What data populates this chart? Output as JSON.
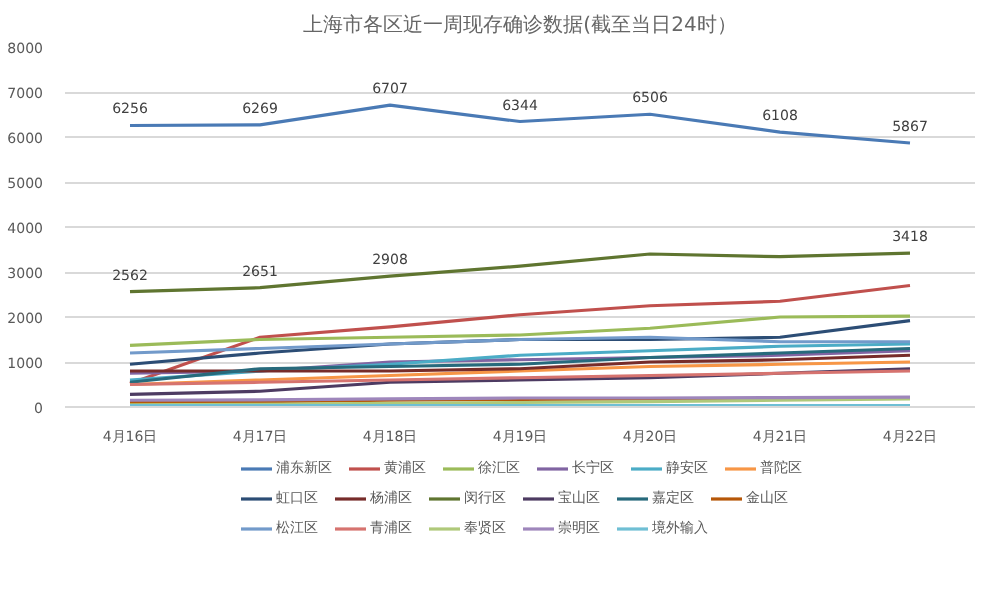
{
  "chart_data": {
    "type": "line",
    "title": "上海市各区近一周现存确诊数据(截至当日24时）",
    "categories": [
      "4月16日",
      "4月17日",
      "4月18日",
      "4月19日",
      "4月20日",
      "4月21日",
      "4月22日"
    ],
    "ylim": [
      0,
      8000
    ],
    "yticks": [
      0,
      1000,
      2000,
      3000,
      4000,
      5000,
      6000,
      7000,
      8000
    ],
    "grid": "y",
    "legend": "bottom",
    "marker": "none",
    "line_style": "solid",
    "series": [
      {
        "name": "浦东新区",
        "color": "#4a7ab5",
        "values": [
          6256,
          6269,
          6707,
          6344,
          6506,
          6108,
          5867
        ],
        "value_labels": [
          "6256",
          "6269",
          "6707",
          "6344",
          "6506",
          "6108",
          "5867"
        ]
      },
      {
        "name": "黄浦区",
        "color": "#c0504d",
        "values": [
          520,
          1550,
          1780,
          2050,
          2250,
          2350,
          2700
        ]
      },
      {
        "name": "徐汇区",
        "color": "#9bbb59",
        "values": [
          1370,
          1500,
          1550,
          1600,
          1750,
          2000,
          2020
        ]
      },
      {
        "name": "长宁区",
        "color": "#8064a2",
        "values": [
          750,
          800,
          1000,
          1050,
          1100,
          1150,
          1250
        ]
      },
      {
        "name": "静安区",
        "color": "#4bacc6",
        "values": [
          600,
          800,
          950,
          1150,
          1250,
          1350,
          1400
        ]
      },
      {
        "name": "普陀区",
        "color": "#f79646",
        "values": [
          500,
          600,
          700,
          800,
          900,
          950,
          1000
        ]
      },
      {
        "name": "虹口区",
        "color": "#2c4d75",
        "values": [
          950,
          1200,
          1400,
          1500,
          1500,
          1550,
          1920
        ]
      },
      {
        "name": "杨浦区",
        "color": "#772c2a",
        "values": [
          800,
          800,
          800,
          850,
          1000,
          1050,
          1150
        ]
      },
      {
        "name": "闵行区",
        "color": "#5f7530",
        "values": [
          2562,
          2651,
          2908,
          3130,
          3400,
          3340,
          3418
        ],
        "value_labels": [
          "2562",
          "2651",
          "2908",
          null,
          null,
          null,
          "3418"
        ]
      },
      {
        "name": "宝山区",
        "color": "#4d3b62",
        "values": [
          280,
          350,
          550,
          600,
          650,
          750,
          850
        ]
      },
      {
        "name": "嘉定区",
        "color": "#276a7c",
        "values": [
          550,
          850,
          900,
          950,
          1100,
          1200,
          1300
        ]
      },
      {
        "name": "金山区",
        "color": "#b65708",
        "values": [
          100,
          120,
          150,
          170,
          180,
          190,
          200
        ]
      },
      {
        "name": "松江区",
        "color": "#729aca",
        "values": [
          1200,
          1300,
          1400,
          1500,
          1550,
          1450,
          1450
        ]
      },
      {
        "name": "青浦区",
        "color": "#d6736f",
        "values": [
          500,
          550,
          600,
          650,
          700,
          750,
          800
        ]
      },
      {
        "name": "奉贤区",
        "color": "#afc97a",
        "values": [
          50,
          60,
          80,
          100,
          120,
          150,
          180
        ]
      },
      {
        "name": "崇明区",
        "color": "#9e86bb",
        "values": [
          150,
          160,
          180,
          200,
          200,
          210,
          220
        ]
      },
      {
        "name": "境外输入",
        "color": "#6fbfd4",
        "values": [
          30,
          30,
          30,
          30,
          30,
          30,
          30
        ]
      }
    ]
  }
}
